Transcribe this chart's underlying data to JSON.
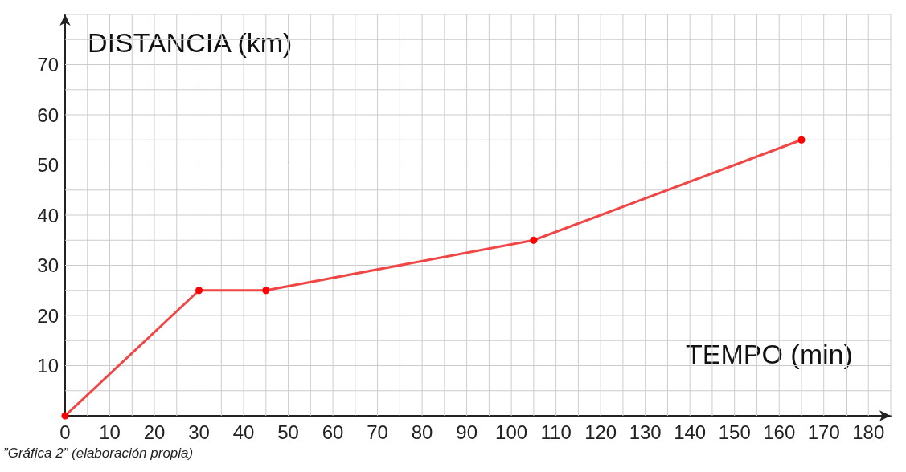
{
  "chart_data": {
    "type": "line",
    "xlabel": "TEMPO (min)",
    "ylabel": "DISTANCIA (km)",
    "x": [
      0,
      30,
      45,
      105,
      165
    ],
    "series": [
      {
        "color": "#f04646",
        "values": [
          0,
          25,
          25,
          35,
          55
        ]
      }
    ],
    "xlim": [
      0,
      185
    ],
    "xticks": [
      0,
      10,
      20,
      30,
      40,
      50,
      60,
      70,
      80,
      90,
      100,
      110,
      120,
      130,
      140,
      150,
      160,
      170,
      180
    ],
    "ylim": [
      0,
      80
    ],
    "yticks": [
      10,
      20,
      30,
      40,
      50,
      60,
      70
    ],
    "grid": true,
    "marker": "circle",
    "line_style": "solid",
    "annotations": [
      "”Gráfica 2” (elaboración propia)"
    ]
  }
}
